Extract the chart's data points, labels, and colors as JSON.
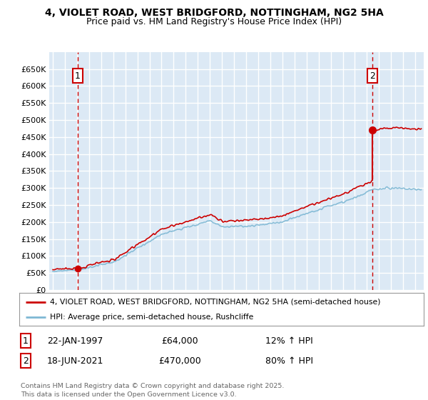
{
  "title_line1": "4, VIOLET ROAD, WEST BRIDGFORD, NOTTINGHAM, NG2 5HA",
  "title_line2": "Price paid vs. HM Land Registry's House Price Index (HPI)",
  "plot_bg_color": "#dce9f5",
  "grid_color": "white",
  "red_color": "#cc0000",
  "blue_color": "#7eb8d4",
  "ylim": [
    0,
    700000
  ],
  "yticks": [
    0,
    50000,
    100000,
    150000,
    200000,
    250000,
    300000,
    350000,
    400000,
    450000,
    500000,
    550000,
    600000,
    650000
  ],
  "ytick_labels": [
    "£0",
    "£50K",
    "£100K",
    "£150K",
    "£200K",
    "£250K",
    "£300K",
    "£350K",
    "£400K",
    "£450K",
    "£500K",
    "£550K",
    "£600K",
    "£650K"
  ],
  "xlim_start": 1994.7,
  "xlim_end": 2025.7,
  "sale1_x": 1997.06,
  "sale1_y": 64000,
  "sale2_x": 2021.46,
  "sale2_y": 470000,
  "legend_line1": "4, VIOLET ROAD, WEST BRIDGFORD, NOTTINGHAM, NG2 5HA (semi-detached house)",
  "legend_line2": "HPI: Average price, semi-detached house, Rushcliffe",
  "annotation1_label": "1",
  "annotation1_date": "22-JAN-1997",
  "annotation1_price": "£64,000",
  "annotation1_hpi": "12% ↑ HPI",
  "annotation2_label": "2",
  "annotation2_date": "18-JUN-2021",
  "annotation2_price": "£470,000",
  "annotation2_hpi": "80% ↑ HPI",
  "footer": "Contains HM Land Registry data © Crown copyright and database right 2025.\nThis data is licensed under the Open Government Licence v3.0."
}
